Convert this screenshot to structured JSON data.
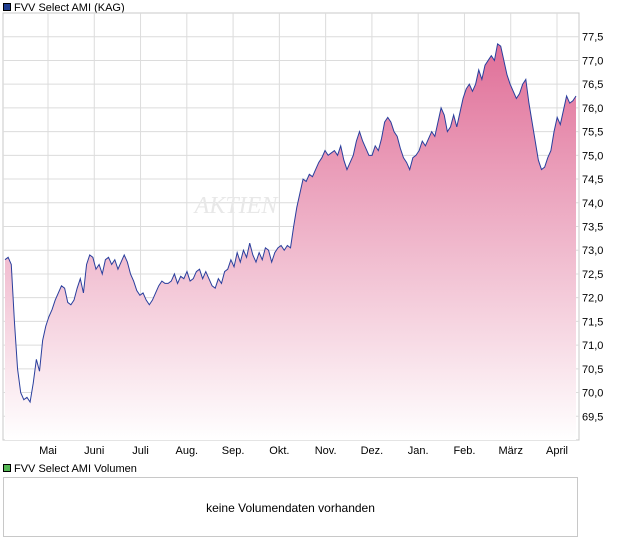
{
  "legend_price": {
    "label": "FVV Select AMI (KAG)",
    "color": "#1f3d8f"
  },
  "legend_volume": {
    "label": "FVV Select AMI Volumen",
    "color": "#55b755"
  },
  "volume_message": "keine Volumendaten vorhanden",
  "watermark": "AKTIEN",
  "chart_data": {
    "type": "area",
    "series": [
      {
        "line_color": "#2a3f9d",
        "fill_top_color": "#e06f98",
        "fill_bottom_color": "#ffffff",
        "values": [
          72.8,
          72.85,
          72.7,
          71.5,
          70.5,
          70.0,
          69.85,
          69.9,
          69.8,
          70.2,
          70.7,
          70.45,
          71.1,
          71.4,
          71.6,
          71.75,
          71.95,
          72.1,
          72.25,
          72.2,
          71.9,
          71.85,
          71.95,
          72.2,
          72.4,
          72.1,
          72.7,
          72.9,
          72.85,
          72.6,
          72.7,
          72.5,
          72.8,
          72.85,
          72.7,
          72.8,
          72.6,
          72.75,
          72.9,
          72.75,
          72.5,
          72.35,
          72.15,
          72.05,
          72.1,
          71.95,
          71.85,
          71.95,
          72.1,
          72.25,
          72.35,
          72.3,
          72.3,
          72.35,
          72.5,
          72.3,
          72.45,
          72.4,
          72.55,
          72.35,
          72.4,
          72.55,
          72.6,
          72.4,
          72.55,
          72.4,
          72.25,
          72.2,
          72.4,
          72.3,
          72.55,
          72.6,
          72.8,
          72.65,
          72.95,
          72.75,
          73.0,
          72.85,
          73.15,
          72.9,
          72.75,
          72.95,
          72.8,
          73.05,
          73.0,
          72.75,
          72.95,
          73.05,
          73.1,
          73.0,
          73.1,
          73.05,
          73.5,
          73.9,
          74.2,
          74.5,
          74.45,
          74.6,
          74.55,
          74.7,
          74.85,
          74.95,
          75.1,
          75.0,
          75.05,
          75.1,
          75.0,
          75.2,
          74.9,
          74.7,
          74.85,
          75.0,
          75.3,
          75.5,
          75.3,
          75.15,
          75.0,
          75.0,
          75.2,
          75.1,
          75.35,
          75.7,
          75.8,
          75.7,
          75.5,
          75.4,
          75.15,
          74.95,
          74.85,
          74.7,
          74.95,
          75.0,
          75.1,
          75.3,
          75.2,
          75.35,
          75.5,
          75.4,
          75.7,
          76.0,
          75.85,
          75.5,
          75.6,
          75.85,
          75.6,
          75.9,
          76.2,
          76.4,
          76.5,
          76.35,
          76.5,
          76.8,
          76.6,
          76.9,
          77.0,
          77.1,
          77.0,
          77.35,
          77.3,
          77.0,
          76.7,
          76.5,
          76.35,
          76.2,
          76.3,
          76.5,
          76.6,
          76.1,
          75.7,
          75.3,
          74.9,
          74.7,
          74.75,
          74.95,
          75.1,
          75.5,
          75.8,
          75.65,
          75.95,
          76.25,
          76.1,
          76.15,
          76.25
        ],
        "last_value_label": "76,25"
      }
    ],
    "x_ticks": [
      "Mai",
      "Juni",
      "Juli",
      "Aug.",
      "Sep.",
      "Okt.",
      "Nov.",
      "Dez.",
      "Jan.",
      "Feb.",
      "März",
      "April"
    ],
    "y_ticks": [
      "69,5",
      "70,0",
      "70,5",
      "71,0",
      "71,5",
      "72,0",
      "72,5",
      "73,0",
      "73,5",
      "74,0",
      "74,5",
      "75,0",
      "75,5",
      "76,0",
      "76,5",
      "77,0",
      "77,5"
    ],
    "ylim": [
      69.0,
      78.0
    ],
    "grid": true
  }
}
